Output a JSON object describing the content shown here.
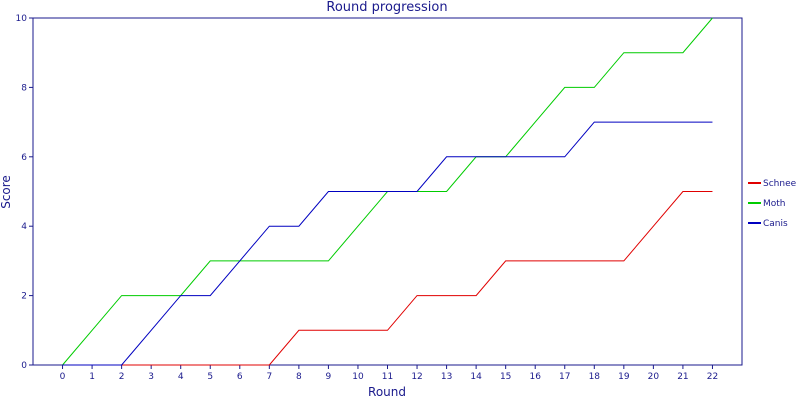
{
  "chart_data": {
    "type": "line",
    "title": "Round progression",
    "xlabel": "Round",
    "ylabel": "Score",
    "x": [
      0,
      1,
      2,
      3,
      4,
      5,
      6,
      7,
      8,
      9,
      10,
      11,
      12,
      13,
      14,
      15,
      16,
      17,
      18,
      19,
      20,
      21,
      22
    ],
    "xlim": [
      -1,
      23
    ],
    "ylim": [
      0,
      10
    ],
    "yticks": [
      0,
      2,
      4,
      6,
      8,
      10
    ],
    "grid": false,
    "legend_position": "right",
    "series": [
      {
        "name": "Schnee",
        "color": "#e00000",
        "values": [
          0,
          0,
          0,
          0,
          0,
          0,
          0,
          0,
          1,
          1,
          1,
          1,
          2,
          2,
          2,
          3,
          3,
          3,
          3,
          3,
          4,
          5,
          5
        ]
      },
      {
        "name": "Moth",
        "color": "#00cc00",
        "values": [
          0,
          1,
          2,
          2,
          2,
          3,
          3,
          3,
          3,
          3,
          4,
          5,
          5,
          5,
          6,
          6,
          7,
          8,
          8,
          9,
          9,
          9,
          10
        ]
      },
      {
        "name": "Canis",
        "color": "#0000c0",
        "values": [
          0,
          0,
          0,
          1,
          2,
          2,
          3,
          4,
          4,
          5,
          5,
          5,
          5,
          6,
          6,
          6,
          6,
          6,
          7,
          7,
          7,
          7,
          7
        ]
      }
    ]
  }
}
